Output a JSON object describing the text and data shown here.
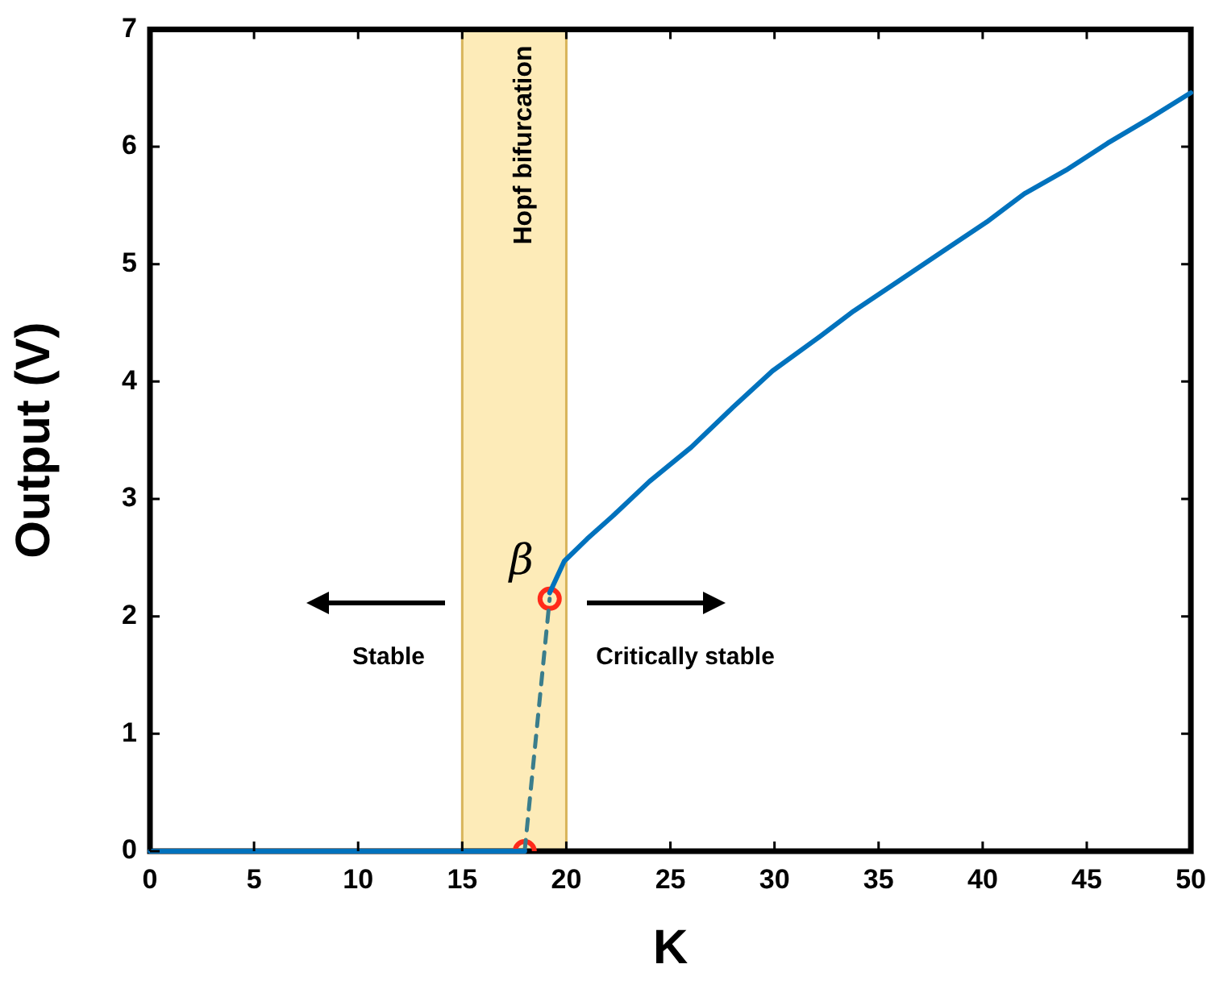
{
  "chart_data": {
    "type": "line",
    "xlabel": "K",
    "ylabel": "Output (V)",
    "xlim": [
      0,
      50
    ],
    "ylim": [
      0,
      7
    ],
    "xticks": [
      0,
      5,
      10,
      15,
      20,
      25,
      30,
      35,
      40,
      45,
      50
    ],
    "yticks": [
      0,
      1,
      2,
      3,
      4,
      5,
      6,
      7
    ],
    "grid": false,
    "legend": false,
    "bands": [
      {
        "axis": "x",
        "from": 15,
        "to": 20,
        "label": "Hopf bifurcation",
        "color": "#fdebb8"
      }
    ],
    "annotations": [
      {
        "text": "β",
        "x": 19.2,
        "y": 2.15
      },
      "Stable",
      "Critically stable"
    ],
    "series": [
      {
        "type": "line",
        "x": [
          0,
          18
        ],
        "values": [
          0,
          0
        ],
        "color": "#0072bd",
        "line_style": "solid"
      },
      {
        "type": "line",
        "x": [
          18,
          19.2
        ],
        "values": [
          0,
          2.15
        ],
        "color": "#3a7d8c",
        "line_style": "dashed"
      },
      {
        "type": "line",
        "x": [
          19.2,
          19.9,
          21,
          22.2,
          24,
          26,
          28,
          29.9,
          32,
          33.8,
          36,
          38,
          40.2,
          42,
          44,
          46,
          48,
          50
        ],
        "values": [
          2.2,
          2.47,
          2.66,
          2.85,
          3.15,
          3.44,
          3.78,
          4.09,
          4.36,
          4.6,
          4.86,
          5.1,
          5.36,
          5.6,
          5.8,
          6.03,
          6.24,
          6.46
        ],
        "color": "#0072bd",
        "line_style": "solid"
      },
      {
        "type": "scatter",
        "x": [
          18,
          19.2
        ],
        "values": [
          0,
          2.15
        ],
        "color": "#ff2a1a",
        "marker": "circle"
      }
    ]
  }
}
